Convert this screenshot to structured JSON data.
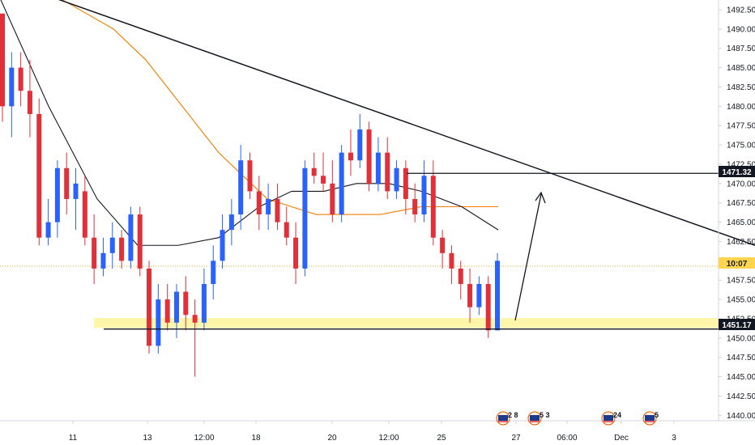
{
  "chart_data": {
    "type": "candlestick",
    "title": "",
    "xlabel": "",
    "ylabel": "",
    "ylim": [
      1437.5,
      1495.0
    ],
    "x_ticks": [
      "11",
      "13",
      "12:00",
      "18",
      "20",
      "12:00",
      "25",
      "27",
      "06:00",
      "Dec",
      "3"
    ],
    "y_ticks": [
      1440.0,
      1442.5,
      1445.0,
      1447.5,
      1450.0,
      1452.5,
      1455.0,
      1457.5,
      1460.0,
      1462.5,
      1465.0,
      1467.5,
      1470.0,
      1472.5,
      1475.0,
      1477.5,
      1480.0,
      1482.5,
      1485.0,
      1487.5,
      1490.0,
      1492.5
    ],
    "price_tags": {
      "resistance": "1471.32",
      "current_countdown": "10:07",
      "support": "1451.17"
    },
    "levels": {
      "resistance": 1471.32,
      "current": 1459.3,
      "support_zone": [
        1451.3,
        1452.6
      ],
      "support_line": 1451.17
    },
    "trendline": {
      "from": [
        0.0,
        1496.5
      ],
      "to": [
        932.0,
        1462.0
      ]
    },
    "candles": [
      [
        1492,
        1492,
        1478,
        1480
      ],
      [
        1480,
        1487,
        1476,
        1485
      ],
      [
        1485,
        1487,
        1480,
        1482
      ],
      [
        1482,
        1486,
        1476,
        1479
      ],
      [
        1479,
        1481,
        1462,
        1463
      ],
      [
        1463,
        1468,
        1462,
        1465
      ],
      [
        1465,
        1473,
        1463,
        1472
      ],
      [
        1472,
        1474,
        1466,
        1468
      ],
      [
        1468,
        1472,
        1464,
        1470
      ],
      [
        1469,
        1471,
        1462,
        1463
      ],
      [
        1463,
        1466,
        1457,
        1459
      ],
      [
        1459,
        1463,
        1458,
        1461
      ],
      [
        1461,
        1465,
        1459,
        1463
      ],
      [
        1463,
        1464,
        1459,
        1460
      ],
      [
        1460,
        1467,
        1459,
        1466
      ],
      [
        1466,
        1467,
        1458,
        1459
      ],
      [
        1459,
        1460,
        1448,
        1449
      ],
      [
        1449,
        1457,
        1448,
        1455
      ],
      [
        1455,
        1457,
        1451,
        1452
      ],
      [
        1452,
        1457,
        1450,
        1456
      ],
      [
        1456,
        1458,
        1451,
        1453
      ],
      [
        1453,
        1455,
        1445,
        1452
      ],
      [
        1452,
        1459,
        1451,
        1457
      ],
      [
        1457,
        1462,
        1455,
        1460
      ],
      [
        1460,
        1466,
        1459,
        1464
      ],
      [
        1464,
        1468,
        1462,
        1466
      ],
      [
        1466,
        1475,
        1464,
        1473
      ],
      [
        1473,
        1474,
        1468,
        1469
      ],
      [
        1469,
        1471,
        1464,
        1466
      ],
      [
        1466,
        1470,
        1464,
        1468
      ],
      [
        1468,
        1470,
        1464,
        1465
      ],
      [
        1465,
        1467,
        1462,
        1463
      ],
      [
        1463,
        1465,
        1457,
        1459
      ],
      [
        1459,
        1473,
        1458,
        1472
      ],
      [
        1472,
        1474,
        1470,
        1471
      ],
      [
        1471,
        1474,
        1469,
        1470
      ],
      [
        1470,
        1473,
        1465,
        1466
      ],
      [
        1466,
        1475,
        1465,
        1474
      ],
      [
        1474,
        1477,
        1471,
        1473
      ],
      [
        1473,
        1479,
        1472,
        1477
      ],
      [
        1477,
        1478,
        1469,
        1470
      ],
      [
        1470,
        1476,
        1469,
        1474
      ],
      [
        1474,
        1476,
        1468,
        1469
      ],
      [
        1469,
        1473,
        1468,
        1472
      ],
      [
        1472,
        1473,
        1466,
        1468
      ],
      [
        1468,
        1470,
        1465,
        1466
      ],
      [
        1466,
        1473,
        1465,
        1471
      ],
      [
        1471,
        1473,
        1462,
        1463
      ],
      [
        1463,
        1464,
        1459,
        1461
      ],
      [
        1461,
        1462,
        1457,
        1459
      ],
      [
        1459,
        1460,
        1455,
        1457
      ],
      [
        1457,
        1459,
        1452,
        1454
      ],
      [
        1454,
        1458,
        1453,
        1457
      ],
      [
        1457,
        1458,
        1450,
        1451
      ],
      [
        1451,
        1461,
        1451,
        1460
      ]
    ],
    "series": [
      {
        "name": "",
        "color": "#f57c00",
        "values": [
          1496,
          1493,
          1490,
          1486,
          1482,
          1478,
          1474,
          1471,
          1468,
          1467,
          1466,
          1466,
          1466,
          1467,
          1467,
          1467
        ]
      },
      {
        "name": "",
        "color": "#131722",
        "values": [
          1494,
          1480,
          1468,
          1462,
          1462,
          1463,
          1467,
          1469,
          1469,
          1470,
          1470,
          1469,
          1467,
          1464
        ]
      }
    ],
    "grid": false,
    "legend": "none"
  },
  "colors": {
    "up": "#2962ff",
    "down": "#e0303a",
    "trendline": "#131722",
    "support_zone": "#fff59d",
    "current_price_line": "#f5a623",
    "axis_text": "#131722"
  },
  "event_markers": [
    {
      "icon": "us-flag-icon",
      "label": "2",
      "label2": "8"
    },
    {
      "icon": "us-flag-icon",
      "label": "5",
      "label2": "3"
    },
    {
      "icon": "us-flag-icon",
      "label": "24",
      "label2": ""
    },
    {
      "icon": "us-flag-icon",
      "label": "5",
      "label2": ""
    }
  ]
}
